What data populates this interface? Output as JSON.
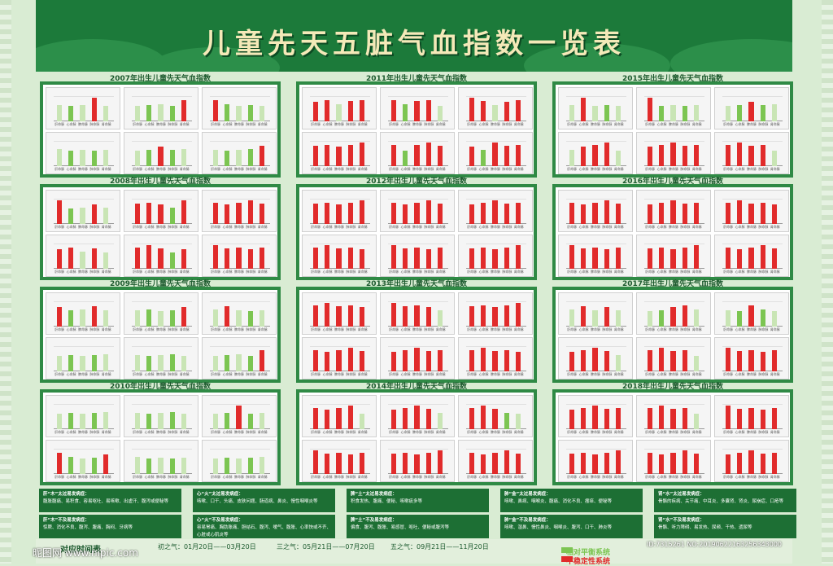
{
  "title": "儿童先天五脏气血指数一览表",
  "colors": {
    "high": "#e12b2b",
    "normal": "#7cc552",
    "light": "#c9e5b5"
  },
  "panels": [
    {
      "title": "2007年出生儿童先天气血指数"
    },
    {
      "title": "2011年出生儿童先天气血指数"
    },
    {
      "title": "2015年出生儿童先天气血指数"
    },
    {
      "title": "2008年出生儿童先天气血指数"
    },
    {
      "title": "2012年出生儿童先天气血指数"
    },
    {
      "title": "2016年出生儿童先天气血指数"
    },
    {
      "title": "2009年出生儿童先天气血指数"
    },
    {
      "title": "2013年出生儿童先天气血指数"
    },
    {
      "title": "2017年出生儿童先天气血指数"
    },
    {
      "title": "2010年出生儿童先天气血指数"
    },
    {
      "title": "2014年出生儿童先天气血指数"
    },
    {
      "title": "2018年出生儿童先天气血指数"
    }
  ],
  "chart_data": {
    "type": "bar",
    "categories": [
      "肝命脉",
      "心命脉",
      "脾命脉",
      "肺命脉",
      "肾命脉"
    ],
    "group_labels": [
      "初之气",
      "二之气",
      "三之气",
      "四之气",
      "五之气",
      "终之气"
    ],
    "patterns": [
      [
        [
          0,
          0,
          0,
          1,
          0
        ],
        [
          0,
          0,
          0,
          0,
          1
        ],
        [
          1,
          0,
          0,
          0,
          0
        ],
        [
          0,
          0,
          0,
          0,
          0
        ],
        [
          0,
          0,
          1,
          0,
          0
        ],
        [
          0,
          0,
          0,
          0,
          1
        ]
      ],
      [
        [
          1,
          1,
          0,
          1,
          1
        ],
        [
          1,
          0,
          1,
          1,
          0
        ],
        [
          1,
          1,
          0,
          1,
          1
        ],
        [
          1,
          1,
          1,
          1,
          1
        ],
        [
          1,
          0,
          1,
          1,
          1
        ],
        [
          1,
          0,
          1,
          1,
          1
        ]
      ],
      [
        [
          0,
          1,
          0,
          0,
          0
        ],
        [
          1,
          0,
          0,
          0,
          0
        ],
        [
          0,
          0,
          1,
          0,
          0
        ],
        [
          0,
          1,
          1,
          1,
          0
        ],
        [
          1,
          1,
          1,
          1,
          1
        ],
        [
          1,
          1,
          1,
          1,
          0
        ]
      ],
      [
        [
          1,
          0,
          0,
          1,
          0
        ],
        [
          1,
          1,
          1,
          0,
          1
        ],
        [
          1,
          1,
          1,
          1,
          1
        ],
        [
          1,
          1,
          0,
          1,
          0
        ],
        [
          1,
          1,
          1,
          0,
          1
        ],
        [
          1,
          1,
          1,
          1,
          1
        ]
      ],
      [
        [
          1,
          1,
          1,
          1,
          1
        ],
        [
          1,
          1,
          1,
          1,
          1
        ],
        [
          1,
          1,
          1,
          1,
          1
        ],
        [
          1,
          1,
          1,
          1,
          1
        ],
        [
          1,
          1,
          1,
          1,
          1
        ],
        [
          1,
          1,
          1,
          1,
          1
        ]
      ],
      [
        [
          1,
          1,
          1,
          1,
          1
        ],
        [
          1,
          1,
          1,
          1,
          1
        ],
        [
          1,
          1,
          1,
          1,
          1
        ],
        [
          1,
          1,
          1,
          1,
          1
        ],
        [
          1,
          1,
          1,
          1,
          1
        ],
        [
          1,
          1,
          1,
          1,
          1
        ]
      ],
      [
        [
          1,
          0,
          0,
          1,
          0
        ],
        [
          0,
          0,
          0,
          0,
          1
        ],
        [
          0,
          1,
          0,
          0,
          0
        ],
        [
          0,
          0,
          0,
          0,
          0
        ],
        [
          0,
          0,
          0,
          0,
          0
        ],
        [
          0,
          0,
          0,
          0,
          1
        ]
      ],
      [
        [
          1,
          1,
          1,
          1,
          1
        ],
        [
          1,
          1,
          1,
          1,
          0
        ],
        [
          1,
          1,
          1,
          1,
          1
        ],
        [
          1,
          1,
          1,
          1,
          1
        ],
        [
          1,
          1,
          1,
          1,
          1
        ],
        [
          1,
          1,
          1,
          1,
          1
        ]
      ],
      [
        [
          0,
          1,
          0,
          1,
          0
        ],
        [
          0,
          0,
          1,
          1,
          0
        ],
        [
          0,
          0,
          1,
          0,
          0
        ],
        [
          1,
          1,
          1,
          1,
          0
        ],
        [
          1,
          1,
          1,
          1,
          0
        ],
        [
          1,
          1,
          1,
          1,
          1
        ]
      ],
      [
        [
          0,
          0,
          0,
          0,
          0
        ],
        [
          0,
          0,
          0,
          0,
          0
        ],
        [
          0,
          0,
          1,
          0,
          0
        ],
        [
          1,
          0,
          0,
          0,
          1
        ],
        [
          0,
          0,
          0,
          0,
          0
        ],
        [
          0,
          0,
          0,
          0,
          0
        ]
      ],
      [
        [
          1,
          1,
          1,
          1,
          0
        ],
        [
          1,
          1,
          1,
          1,
          0
        ],
        [
          1,
          1,
          1,
          0,
          0
        ],
        [
          1,
          1,
          1,
          1,
          1
        ],
        [
          1,
          1,
          1,
          1,
          1
        ],
        [
          1,
          1,
          1,
          1,
          1
        ]
      ],
      [
        [
          1,
          1,
          1,
          1,
          1
        ],
        [
          1,
          1,
          1,
          1,
          0
        ],
        [
          1,
          1,
          1,
          1,
          1
        ],
        [
          1,
          1,
          1,
          1,
          1
        ],
        [
          1,
          1,
          1,
          1,
          1
        ],
        [
          1,
          1,
          1,
          1,
          1
        ]
      ]
    ],
    "heights": [
      0.55,
      0.45,
      0.6,
      0.8,
      0.5
    ]
  },
  "info_boxes": [
    {
      "head": "肝“木”太过易发病症：",
      "body": "腹胀腹痛、易积食、容易呕吐、易咳嗽、出虚汗、腹泻或便秘等"
    },
    {
      "head": "心“火”太过易发病症：",
      "body": "咳嗽、口干、头痛、皮肤问题、肠道病、鼻炎、慢性咽喉炎等"
    },
    {
      "head": "脾“土”太过易发病症：",
      "body": "积食发热、腹痛、便秘、咳嗽痰多等"
    },
    {
      "head": "肺“金”太过易发病症：",
      "body": "咳嗽、鼻病、咽喉炎、腹痛、消化不良、瘙痒、便秘等"
    },
    {
      "head": "肾“水”太过易发病症：",
      "body": "骨骼的疾病、关节痛、中耳炎、多囊肾、肾炎、尿崩症、口疮等"
    },
    {
      "head": "肝“木”不及易发病症：",
      "body": "惊厥、消化不良、腹泻、腹痛、胸闷、牙病等"
    },
    {
      "head": "心“火”不及易发病症：",
      "body": "容易胃痛、胸肋胀痛、胆结石、腹泻、嗳气、腹胀、心率快或不齐、心脏或心肌炎等"
    },
    {
      "head": "脾“土”不及易发病症：",
      "body": "偏食、腹泻、腹胀、易感冒、呕吐、便秘或腹泻等"
    },
    {
      "head": "肺“金”不及易发病症：",
      "body": "咳嗽、湿鼻、慢性鼻炎、咽喉炎、腹泻、口干、肺炎等"
    },
    {
      "head": "肾“水”不及易发病症：",
      "body": "骨骼、听力障碍、易发热、尿频、干热、遗尿等"
    }
  ],
  "bottom": {
    "table_title": "对应时间表",
    "periods": [
      "初之气：01月20日——03月20日",
      "三之气：05月21日——07月20日",
      "五之气：09月21日——11月20日"
    ],
    "legend": [
      "相对平衡系统",
      "不稳定性系统"
    ],
    "watermark_left": "昵图网 www.nipic.com",
    "watermark_right": "ID:7315261 NO:20190622163256343000"
  }
}
